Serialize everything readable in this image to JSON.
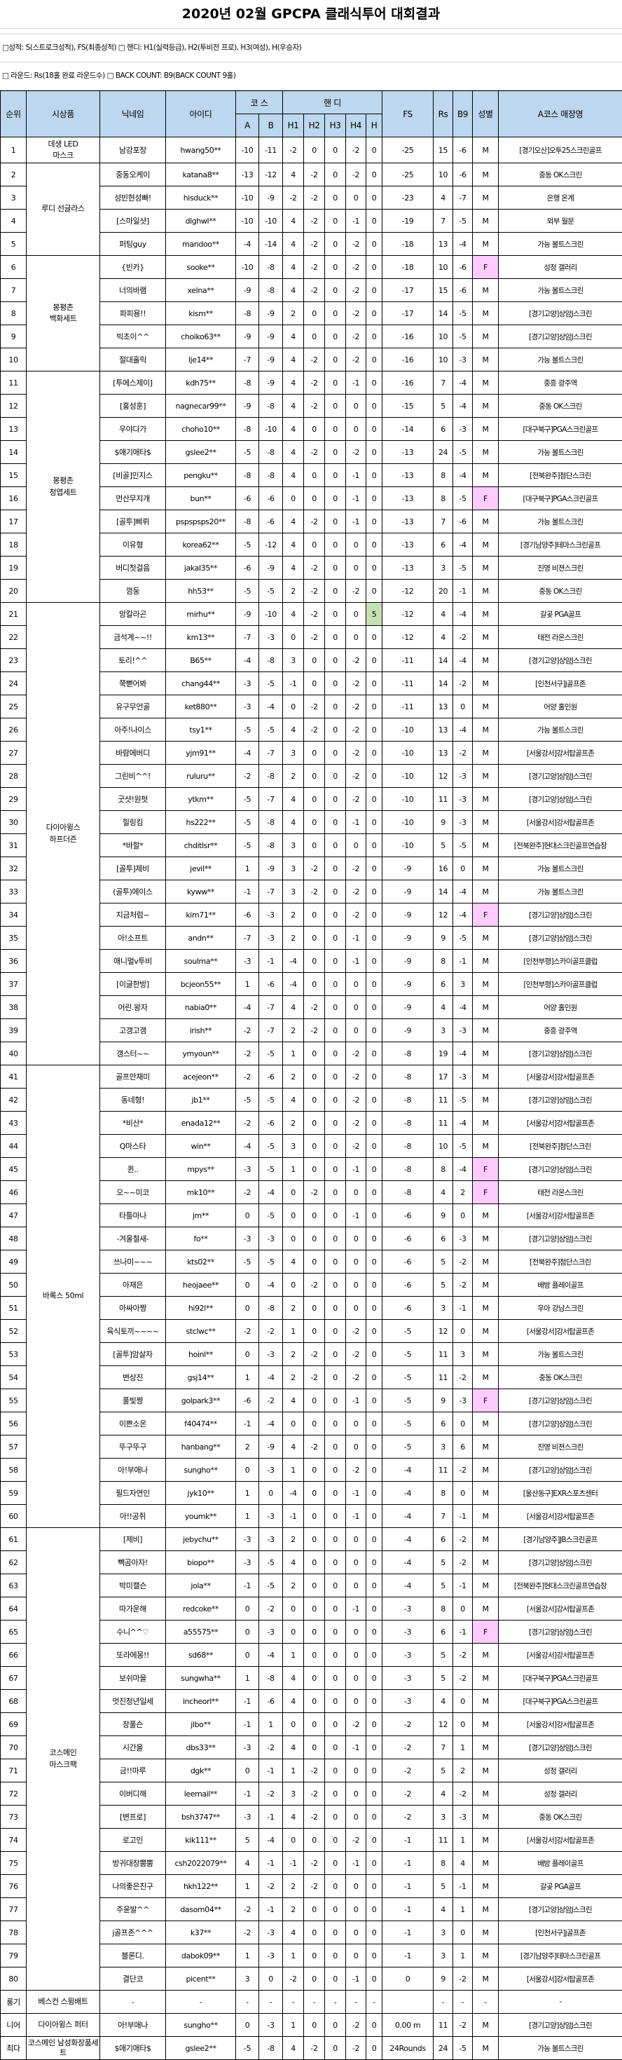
{
  "title": "2020년 02월 GPCPA 클래식투어 대회결과",
  "legend": {
    "line1": "□성적: S(스트로크성적), FS(최종성적)  □ 핸디: H1(실력등급), H2(투비전 프로), H3(여성), H(우승자)",
    "line2": "□ 라운드: Rs(18홀 완료 라운드수)   □ BACK COUNT: B9(BACK COUNT 9홀)"
  },
  "colors": {
    "header_bg": "#bdd7ee",
    "female_highlight": "#ffccff",
    "winner_handicap_highlight": "#c6e0b4"
  },
  "headers": {
    "rank": "순위",
    "prize": "시상품",
    "nickname": "닉네임",
    "id": "아이디",
    "course": "코 스",
    "handicap": "핸 디",
    "a": "A",
    "b": "B",
    "h1": "H1",
    "h2": "H2",
    "h3": "H3",
    "h4": "H4",
    "h": "H",
    "fs": "FS",
    "rs": "Rs",
    "b9": "B9",
    "gender": "성별",
    "store": "A코스 매장명"
  },
  "prizes": [
    {
      "label": "데생 LED\n마스크",
      "count": 1
    },
    {
      "label": "루디 선글라스",
      "count": 4
    },
    {
      "label": "봉평촌\n백화세트",
      "count": 5
    },
    {
      "label": "봉평촌\n청엽세트",
      "count": 10
    },
    {
      "label": "다이아윙스\n하프더즌",
      "count": 20
    },
    {
      "label": "바록스 50ml",
      "count": 20
    },
    {
      "label": "코스메인\n마스크팩",
      "count": 20
    }
  ],
  "rows": [
    [
      "1",
      "남강포장",
      "hwang50**",
      "-10",
      "-11",
      "-2",
      "0",
      "0",
      "-2",
      "0",
      "-25",
      "15",
      "-6",
      "M",
      "[경기오산]오투25스크린골프"
    ],
    [
      "2",
      "중동오케이",
      "katana8**",
      "-13",
      "-12",
      "4",
      "-2",
      "0",
      "-2",
      "0",
      "-25",
      "10",
      "-6",
      "M",
      "중동 OK스크린"
    ],
    [
      "3",
      "성빈현성빠!",
      "hisduck**",
      "-10",
      "-9",
      "-2",
      "-2",
      "0",
      "0",
      "0",
      "-23",
      "4",
      "-7",
      "M",
      "은행 온계"
    ],
    [
      "4",
      "[스마일샷]",
      "dlghwl**",
      "-10",
      "-10",
      "4",
      "-2",
      "0",
      "-1",
      "0",
      "-19",
      "7",
      "-5",
      "M",
      "외부 월문"
    ],
    [
      "5",
      "퍼팅guy",
      "mandoo**",
      "-4",
      "-14",
      "4",
      "-2",
      "0",
      "-2",
      "0",
      "-18",
      "13",
      "-4",
      "M",
      "가능 볼트스크린"
    ],
    [
      "6",
      "{빈카}",
      "sooke**",
      "-10",
      "-8",
      "4",
      "-2",
      "0",
      "-2",
      "0",
      "-18",
      "10",
      "-6",
      "F",
      "성정 갤러리"
    ],
    [
      "7",
      "너의바램",
      "xelna**",
      "-9",
      "-8",
      "4",
      "-2",
      "0",
      "-2",
      "0",
      "-17",
      "15",
      "-6",
      "M",
      "가능 볼트스크린"
    ],
    [
      "8",
      "파피용!!",
      "kism**",
      "-8",
      "-9",
      "2",
      "0",
      "0",
      "-2",
      "0",
      "-17",
      "14",
      "-5",
      "M",
      "[경기고양]상암J스크린"
    ],
    [
      "9",
      "빅초이^^",
      "choiko63**",
      "-9",
      "-9",
      "4",
      "0",
      "0",
      "-2",
      "0",
      "-16",
      "10",
      "-5",
      "M",
      "[경기고양]상암J스크린"
    ],
    [
      "10",
      "절대홀릭",
      "lje14**",
      "-7",
      "-9",
      "4",
      "-2",
      "0",
      "-2",
      "0",
      "-16",
      "10",
      "-3",
      "M",
      "가능 볼트스크린"
    ],
    [
      "11",
      "[투에스제이]",
      "kdh75**",
      "-8",
      "-9",
      "4",
      "-2",
      "0",
      "-1",
      "0",
      "-16",
      "7",
      "-4",
      "M",
      "중흥 광주역"
    ],
    [
      "12",
      "[홍성훈]",
      "nagnecar99**",
      "-9",
      "-8",
      "4",
      "-2",
      "0",
      "0",
      "0",
      "-15",
      "5",
      "-4",
      "M",
      "중동 OK스크린"
    ],
    [
      "13",
      "우야다가",
      "choho10**",
      "-8",
      "-10",
      "4",
      "0",
      "0",
      "0",
      "0",
      "-14",
      "6",
      "-3",
      "M",
      "[대구북구]PGA스크린골프"
    ],
    [
      "14",
      "$애기애타$",
      "gslee2**",
      "-5",
      "-8",
      "4",
      "-2",
      "0",
      "-2",
      "0",
      "-13",
      "24",
      "-5",
      "M",
      "가능 볼트스크린"
    ],
    [
      "15",
      "[비골]민지스",
      "pengku**",
      "-8",
      "-8",
      "4",
      "0",
      "0",
      "-1",
      "0",
      "-13",
      "8",
      "-4",
      "M",
      "[전북완주]첨단스크린"
    ],
    [
      "16",
      "먼산무지개",
      "bun**",
      "-6",
      "-6",
      "0",
      "0",
      "0",
      "-1",
      "0",
      "-13",
      "8",
      "-5",
      "F",
      "[대구북구]PGA스크린골프"
    ],
    [
      "17",
      "[골투]삐뤼",
      "pspspsps20**",
      "-8",
      "-6",
      "4",
      "-2",
      "0",
      "-1",
      "0",
      "-13",
      "7",
      "-6",
      "M",
      "가능 볼트스크린"
    ],
    [
      "18",
      "이유형",
      "korea62**",
      "-5",
      "-12",
      "4",
      "0",
      "0",
      "0",
      "0",
      "-13",
      "6",
      "-4",
      "M",
      "[경기남양주]테마스크린골프"
    ],
    [
      "19",
      "버디첫걸음",
      "jakal35**",
      "-6",
      "-9",
      "4",
      "-2",
      "0",
      "0",
      "0",
      "-13",
      "3",
      "-5",
      "M",
      "진영 비젼스크린"
    ],
    [
      "20",
      "껌둥",
      "hh53**",
      "-5",
      "-5",
      "2",
      "-2",
      "0",
      "-2",
      "0",
      "-12",
      "20",
      "-1",
      "M",
      "중동 OK스크린"
    ],
    [
      "21",
      "앙칼라곤",
      "mirhu**",
      "-9",
      "-10",
      "4",
      "-2",
      "0",
      "0",
      "5",
      "-12",
      "4",
      "-4",
      "M",
      "갈곶 PGA골프"
    ],
    [
      "22",
      "금석계~~!!",
      "km13**",
      "-7",
      "-3",
      "0",
      "-2",
      "0",
      "0",
      "0",
      "-12",
      "4",
      "-2",
      "M",
      "태전 라온스크린"
    ],
    [
      "23",
      "토리!^^",
      "B65**",
      "-4",
      "-8",
      "3",
      "0",
      "0",
      "-2",
      "0",
      "-11",
      "14",
      "-4",
      "M",
      "[경기고양]상암J스크린"
    ],
    [
      "24",
      "쭉뻗어봐",
      "chang44**",
      "-3",
      "-5",
      "-1",
      "0",
      "0",
      "-2",
      "0",
      "-11",
      "14",
      "-2",
      "M",
      "[인천서구]j골프존"
    ],
    [
      "25",
      "유구무언골",
      "ket880**",
      "-3",
      "-4",
      "0",
      "-2",
      "0",
      "-2",
      "0",
      "-11",
      "13",
      "0",
      "M",
      "어양 홀인원"
    ],
    [
      "26",
      "아주!나이스",
      "tsy1**",
      "-5",
      "-5",
      "4",
      "-2",
      "0",
      "-2",
      "0",
      "-10",
      "13",
      "-4",
      "M",
      "가능 볼트스크린"
    ],
    [
      "27",
      "바람에버디",
      "yjm91**",
      "-4",
      "-7",
      "3",
      "0",
      "0",
      "-2",
      "0",
      "-10",
      "13",
      "-2",
      "M",
      "[서울강서]강서탑골프존"
    ],
    [
      "28",
      "그린비^^!",
      "ruluru**",
      "-2",
      "-8",
      "2",
      "0",
      "0",
      "-2",
      "0",
      "-10",
      "12",
      "-3",
      "M",
      "[경기고양]상암J스크린"
    ],
    [
      "29",
      "굿샷!원펏",
      "ytkm**",
      "-5",
      "-7",
      "4",
      "0",
      "0",
      "-2",
      "0",
      "-10",
      "11",
      "-3",
      "M",
      "[경기고양]상암J스크린"
    ],
    [
      "30",
      "힐링킴",
      "hs222**",
      "-5",
      "-8",
      "4",
      "0",
      "0",
      "-1",
      "0",
      "-10",
      "9",
      "-3",
      "M",
      "[서울강서]강서탑골프존"
    ],
    [
      "31",
      "*바할*",
      "chditlsr**",
      "-5",
      "-8",
      "3",
      "0",
      "0",
      "0",
      "0",
      "-10",
      "5",
      "-5",
      "M",
      "[전북완주]현대스크린골프연습장"
    ],
    [
      "32",
      "[골투]제비",
      "jevil**",
      "1",
      "-9",
      "3",
      "-2",
      "0",
      "-2",
      "0",
      "-9",
      "16",
      "0",
      "M",
      "가능 볼트스크린"
    ],
    [
      "33",
      "(골투)에이스",
      "kyww**",
      "-1",
      "-7",
      "3",
      "-2",
      "0",
      "-2",
      "0",
      "-9",
      "14",
      "-4",
      "M",
      "가능 볼트스크린"
    ],
    [
      "34",
      "지금처럼~",
      "kim71**",
      "-6",
      "-3",
      "2",
      "0",
      "0",
      "-2",
      "0",
      "-9",
      "12",
      "-4",
      "F",
      "[경기고양]상암J스크린"
    ],
    [
      "35",
      "아!소프트",
      "andn**",
      "-7",
      "-3",
      "2",
      "0",
      "0",
      "-1",
      "0",
      "-9",
      "9",
      "-5",
      "M",
      "[경기고양]상암J스크린"
    ],
    [
      "36",
      "애니멀v투비",
      "soulma**",
      "-3",
      "-1",
      "-4",
      "0",
      "0",
      "-1",
      "0",
      "-9",
      "8",
      "-1",
      "M",
      "[인천부평]스카이골프클럽"
    ],
    [
      "37",
      "[이글한방]",
      "bcjeon55**",
      "1",
      "-6",
      "-4",
      "0",
      "0",
      "0",
      "0",
      "-9",
      "6",
      "3",
      "M",
      "[인천부평]스카이골프클럽"
    ],
    [
      "38",
      "어린.왕자",
      "nabia0**",
      "-4",
      "-7",
      "4",
      "-2",
      "0",
      "0",
      "0",
      "-9",
      "4",
      "-4",
      "M",
      "어양 홀인원"
    ],
    [
      "39",
      "고갱고갱",
      "irish**",
      "-2",
      "-7",
      "2",
      "-2",
      "0",
      "0",
      "0",
      "-9",
      "3",
      "-3",
      "M",
      "중흥 광주역"
    ],
    [
      "40",
      "갱스터~~",
      "ymyoun**",
      "-2",
      "-5",
      "1",
      "0",
      "0",
      "-2",
      "0",
      "-8",
      "19",
      "-4",
      "M",
      "[경기고양]상암J스크린"
    ],
    [
      "41",
      "골프만재미",
      "acejeon**",
      "-2",
      "-6",
      "2",
      "0",
      "0",
      "-2",
      "0",
      "-8",
      "17",
      "-3",
      "M",
      "[서울강서]강서탑골프존"
    ],
    [
      "42",
      "동네형!",
      "jb1**",
      "-5",
      "-5",
      "4",
      "0",
      "0",
      "-2",
      "0",
      "-8",
      "11",
      "-5",
      "M",
      "[경기고양]상암J스크린"
    ],
    [
      "43",
      "*비산*",
      "enada12**",
      "-2",
      "-6",
      "2",
      "0",
      "0",
      "-2",
      "0",
      "-8",
      "11",
      "-4",
      "M",
      "[서울강서]강서탑골프존"
    ],
    [
      "44",
      "Q마스타",
      "win**",
      "-4",
      "-5",
      "3",
      "0",
      "0",
      "-2",
      "0",
      "-8",
      "10",
      "-5",
      "M",
      "[전북완주]첨단스크린"
    ],
    [
      "45",
      "퀸..",
      "mpys**",
      "-3",
      "-5",
      "1",
      "0",
      "0",
      "-1",
      "0",
      "-8",
      "8",
      "-4",
      "F",
      "[경기고양]상암J스크린"
    ],
    [
      "46",
      "오~~미코",
      "mk10**",
      "-2",
      "-4",
      "0",
      "-2",
      "0",
      "0",
      "0",
      "-8",
      "4",
      "2",
      "F",
      "태전 라온스크린"
    ],
    [
      "47",
      "타틀마나",
      "jm**",
      "0",
      "-5",
      "0",
      "0",
      "0",
      "-1",
      "0",
      "-6",
      "9",
      "0",
      "M",
      "[서울강서]강서탑골프존"
    ],
    [
      "48",
      "-겨울철새-",
      "fo**",
      "-3",
      "-3",
      "0",
      "0",
      "0",
      "0",
      "0",
      "-6",
      "6",
      "-3",
      "M",
      "[경기고양]상암J스크린"
    ],
    [
      "49",
      "쓰나미~~~",
      "kts02**",
      "-5",
      "-5",
      "4",
      "0",
      "0",
      "0",
      "0",
      "-6",
      "5",
      "-2",
      "M",
      "[전북완주]첨단스크린"
    ],
    [
      "50",
      "아재은",
      "heojaee**",
      "0",
      "-4",
      "0",
      "-2",
      "0",
      "0",
      "0",
      "-6",
      "5",
      "-2",
      "M",
      "배방 플레이골프"
    ],
    [
      "51",
      "아싸아짱",
      "hi92l**",
      "0",
      "-8",
      "2",
      "0",
      "0",
      "0",
      "0",
      "-6",
      "3",
      "-1",
      "M",
      "우아 강남스크린"
    ],
    [
      "52",
      "육식토끼~~~~",
      "stclwc**",
      "-2",
      "-2",
      "1",
      "0",
      "0",
      "-2",
      "0",
      "-5",
      "12",
      "0",
      "M",
      "[서울강서]강서탑골프존"
    ],
    [
      "53",
      "[골투]암살자",
      "hoinl**",
      "0",
      "-3",
      "2",
      "-2",
      "0",
      "-2",
      "0",
      "-5",
      "11",
      "3",
      "M",
      "가능 볼트스크린"
    ],
    [
      "54",
      "변상진",
      "gsj14**",
      "1",
      "-4",
      "2",
      "-2",
      "0",
      "-2",
      "0",
      "-5",
      "11",
      "-2",
      "M",
      "중동 OK스크린"
    ],
    [
      "55",
      "풀빛짱",
      "golpark3**",
      "-6",
      "-2",
      "4",
      "0",
      "0",
      "-1",
      "0",
      "-5",
      "9",
      "-3",
      "F",
      "[경기고양]상암J스크린"
    ],
    [
      "56",
      "이쁜소온",
      "f40474**",
      "-1",
      "-4",
      "0",
      "0",
      "0",
      "0",
      "0",
      "-5",
      "6",
      "0",
      "M",
      "[경기고양]상암J스크린"
    ],
    [
      "57",
      "뚜구뚜구",
      "hanbang**",
      "2",
      "-9",
      "4",
      "-2",
      "0",
      "0",
      "0",
      "-5",
      "3",
      "6",
      "M",
      "진영 비젼스크린"
    ],
    [
      "58",
      "아!부애나",
      "sungho**",
      "0",
      "-3",
      "1",
      "0",
      "0",
      "-2",
      "0",
      "-4",
      "11",
      "-2",
      "M",
      "[경기고양]상암J스크린"
    ],
    [
      "59",
      "필드자연인",
      "jyk10**",
      "1",
      "0",
      "-4",
      "0",
      "0",
      "-1",
      "0",
      "-4",
      "8",
      "0",
      "M",
      "[울산동구]EXR스포츠센터"
    ],
    [
      "60",
      "아!!공쥐",
      "youmk**",
      "1",
      "-3",
      "-1",
      "0",
      "0",
      "-1",
      "0",
      "-4",
      "7",
      "-1",
      "M",
      "[서울강서]강서탑골프존"
    ],
    [
      "61",
      "[제비]",
      "jebychu**",
      "-3",
      "-3",
      "2",
      "0",
      "0",
      "0",
      "0",
      "-4",
      "6",
      "-2",
      "M",
      "[경기남양주]JB스크린골프"
    ],
    [
      "62",
      "빽곰아자!",
      "biopo**",
      "-3",
      "-5",
      "4",
      "0",
      "0",
      "0",
      "0",
      "-4",
      "5",
      "-2",
      "M",
      "[경기고양]상암J스크린"
    ],
    [
      "63",
      "박미캘슨",
      "jola**",
      "-1",
      "-5",
      "2",
      "0",
      "0",
      "0",
      "0",
      "-4",
      "5",
      "-1",
      "M",
      "[전북완주]현대스크린골프연습장"
    ],
    [
      "64",
      "따가운해",
      "redcoke**",
      "0",
      "-2",
      "0",
      "0",
      "0",
      "-1",
      "0",
      "-3",
      "8",
      "0",
      "M",
      "[서울강서]강서탑골프존"
    ],
    [
      "65",
      "수니^^♡",
      "a55575**",
      "0",
      "-3",
      "0",
      "0",
      "0",
      "0",
      "0",
      "-3",
      "6",
      "-1",
      "F",
      "[경기고양]상암J스크린"
    ],
    [
      "66",
      "또라에몽!!",
      "sd68**",
      "0",
      "-4",
      "1",
      "0",
      "0",
      "0",
      "0",
      "-3",
      "5",
      "-2",
      "M",
      "[서울강서]강서탑골프존"
    ],
    [
      "67",
      "보쉬마을",
      "sungwha**",
      "1",
      "-8",
      "4",
      "0",
      "0",
      "0",
      "0",
      "-3",
      "5",
      "-2",
      "M",
      "[대구북구]PGA스크린골프"
    ],
    [
      "68",
      "멋진청년일세",
      "incheorl**",
      "-1",
      "-6",
      "4",
      "0",
      "0",
      "0",
      "0",
      "-3",
      "4",
      "0",
      "M",
      "[대구북구]PGA스크린골프"
    ],
    [
      "69",
      "장풀슨",
      "jlbo**",
      "-1",
      "1",
      "0",
      "0",
      "0",
      "-2",
      "0",
      "-2",
      "12",
      "0",
      "M",
      "[서울강서]강서탑골프존"
    ],
    [
      "70",
      "시간을",
      "dbs33**",
      "-3",
      "-2",
      "4",
      "0",
      "0",
      "-1",
      "0",
      "-2",
      "7",
      "1",
      "M",
      "[경기고양]상암J스크린"
    ],
    [
      "71",
      "금!!마루",
      "dgk**",
      "0",
      "-1",
      "1",
      "-2",
      "0",
      "0",
      "0",
      "-2",
      "5",
      "2",
      "M",
      "성정 갤러리"
    ],
    [
      "72",
      "이버디해",
      "leemail**",
      "-1",
      "-2",
      "3",
      "-2",
      "0",
      "0",
      "0",
      "-2",
      "4",
      "-2",
      "M",
      "성정 갤러리"
    ],
    [
      "73",
      "[변프로]",
      "bsh3747**",
      "-3",
      "-1",
      "4",
      "-2",
      "0",
      "0",
      "0",
      "-2",
      "3",
      "-3",
      "M",
      "중동 OK스크린"
    ],
    [
      "74",
      "로고인",
      "kik111**",
      "5",
      "-4",
      "0",
      "0",
      "0",
      "-2",
      "0",
      "-1",
      "11",
      "1",
      "M",
      "[서울강서]강서탑골프존"
    ],
    [
      "75",
      "방귀대장뿜뿜",
      "csh2022079**",
      "4",
      "-1",
      "-1",
      "-2",
      "0",
      "-1",
      "0",
      "-1",
      "8",
      "4",
      "M",
      "배방 플레이골프"
    ],
    [
      "76",
      "나의좋은친구",
      "hkh122**",
      "1",
      "-2",
      "2",
      "-2",
      "0",
      "0",
      "0",
      "-1",
      "5",
      "-1",
      "M",
      "갈곶 PGA골프"
    ],
    [
      "77",
      "주윤발^^",
      "dasom04**",
      "-2",
      "-1",
      "2",
      "0",
      "0",
      "0",
      "0",
      "-1",
      "4",
      "1",
      "M",
      "[경기고양]상암J스크린"
    ],
    [
      "78",
      "j골프존^^^",
      "k37**",
      "-2",
      "-3",
      "4",
      "0",
      "0",
      "0",
      "0",
      "-1",
      "3",
      "0",
      "M",
      "[인천서구]j골프존"
    ],
    [
      "79",
      "블론디.",
      "dabok09**",
      "1",
      "-3",
      "1",
      "0",
      "0",
      "0",
      "0",
      "-1",
      "3",
      "1",
      "M",
      "[경기남양주]테마스크린골프"
    ],
    [
      "80",
      "결단코",
      "picent**",
      "3",
      "0",
      "-2",
      "0",
      "0",
      "-1",
      "0",
      "0",
      "9",
      "-2",
      "M",
      "[서울강서]강서탑골프존"
    ]
  ],
  "special_rows": [
    [
      "롱기",
      "베스컨 스윙배트",
      "-",
      "-",
      "-",
      "-",
      "-",
      "-",
      "-",
      "-",
      "-",
      "",
      "-",
      "-",
      "-",
      "-"
    ],
    [
      "니어",
      "다이아윙스 퍼터",
      "아!부애나",
      "sungho**",
      "0",
      "-3",
      "1",
      "0",
      "0",
      "-2",
      "0",
      "0.00 m",
      "11",
      "-2",
      "M",
      "[경기고양]상암J스크린"
    ],
    [
      "최다",
      "코스메인 남성화장품세트",
      "$애기애타$",
      "gslee2**",
      "-5",
      "-8",
      "4",
      "-2",
      "0",
      "-2",
      "0",
      "24Rounds",
      "24",
      "-5",
      "M",
      "가능 볼트스크린"
    ]
  ]
}
